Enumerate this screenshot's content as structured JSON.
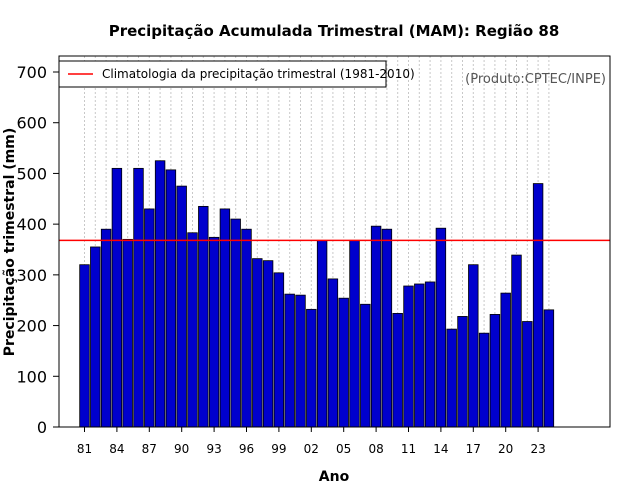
{
  "chart_data": {
    "type": "bar",
    "title": "Precipitação Acumulada Trimestral (MAM): Região 88",
    "xlabel": "Ano",
    "ylabel": "Precipitação trimestral (mm)",
    "ylim": [
      0,
      720
    ],
    "yticks": [
      0,
      100,
      200,
      300,
      400,
      500,
      600,
      700
    ],
    "xtick_labels": [
      "81",
      "84",
      "87",
      "90",
      "93",
      "96",
      "99",
      "02",
      "05",
      "08",
      "11",
      "14",
      "17",
      "20",
      "23"
    ],
    "categories": [
      "81",
      "82",
      "83",
      "84",
      "85",
      "86",
      "87",
      "88",
      "89",
      "90",
      "91",
      "92",
      "93",
      "94",
      "95",
      "96",
      "97",
      "98",
      "99",
      "00",
      "01",
      "02",
      "03",
      "04",
      "05",
      "06",
      "07",
      "08",
      "09",
      "10",
      "11",
      "12",
      "13",
      "14",
      "15",
      "16",
      "17",
      "18",
      "19",
      "20",
      "21",
      "22",
      "23",
      "24"
    ],
    "values": [
      320,
      355,
      390,
      510,
      370,
      510,
      430,
      525,
      507,
      475,
      383,
      435,
      374,
      430,
      410,
      390,
      332,
      328,
      304,
      262,
      260,
      232,
      368,
      292,
      254,
      368,
      242,
      396,
      390,
      224,
      278,
      282,
      286,
      392,
      193,
      218,
      320,
      185,
      222,
      264,
      339,
      208,
      480,
      231
    ],
    "bar_color": "#0000CD",
    "climatology": {
      "value": 368,
      "label": "Climatologia da precipitação trimestral (1981-2010)",
      "color": "#FF0000"
    },
    "legend_position": "top-left",
    "credit": "(Produto:CPTEC/INPE)",
    "grid": "vertical-dotted"
  }
}
